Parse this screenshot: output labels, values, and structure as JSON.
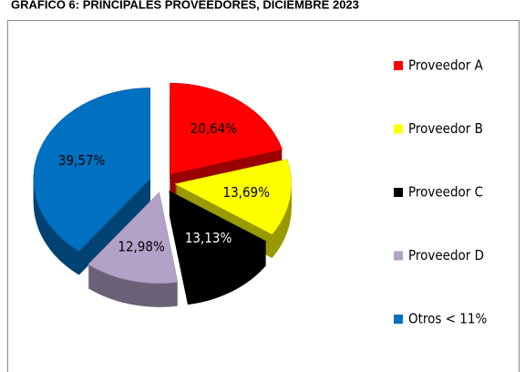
{
  "chart_data": {
    "type": "pie",
    "title": "GRÁFICO 6: PRINCIPALES PROVEEDORES, DICIEMBRE 2023",
    "categories": [
      "Proveedor A",
      "Proveedor B",
      "Proveedor C",
      "Proveedor D",
      "Otros < 11%"
    ],
    "values": [
      20.64,
      13.69,
      13.13,
      12.98,
      39.57
    ],
    "value_labels": [
      "20,64%",
      "13,69%",
      "13,13%",
      "12,98%",
      "39,57%"
    ],
    "colors": [
      "#ff0000",
      "#ffff00",
      "#000000",
      "#b3a2c7",
      "#0070c0"
    ],
    "legend": "right"
  }
}
